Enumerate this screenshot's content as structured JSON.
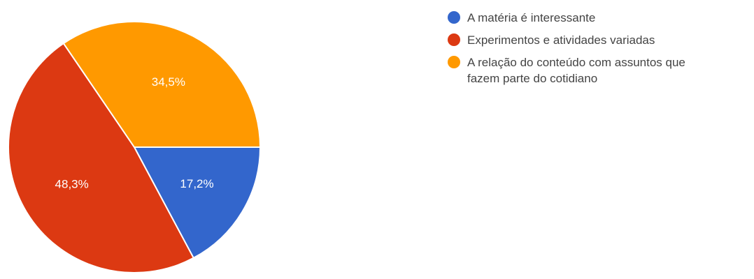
{
  "chart_data": {
    "type": "pie",
    "title": "",
    "legend_position": "right",
    "slices": [
      {
        "label": "A matéria é interessante",
        "value": 17.2,
        "value_label": "17,2%",
        "color": "#3366cc"
      },
      {
        "label": "Experimentos e atividades variadas",
        "value": 48.3,
        "value_label": "48,3%",
        "color": "#dc3912"
      },
      {
        "label": "A relação do conteúdo com assuntos que fazem parte do cotidiano",
        "value": 34.5,
        "value_label": "34,5%",
        "color": "#ff9900"
      }
    ]
  }
}
